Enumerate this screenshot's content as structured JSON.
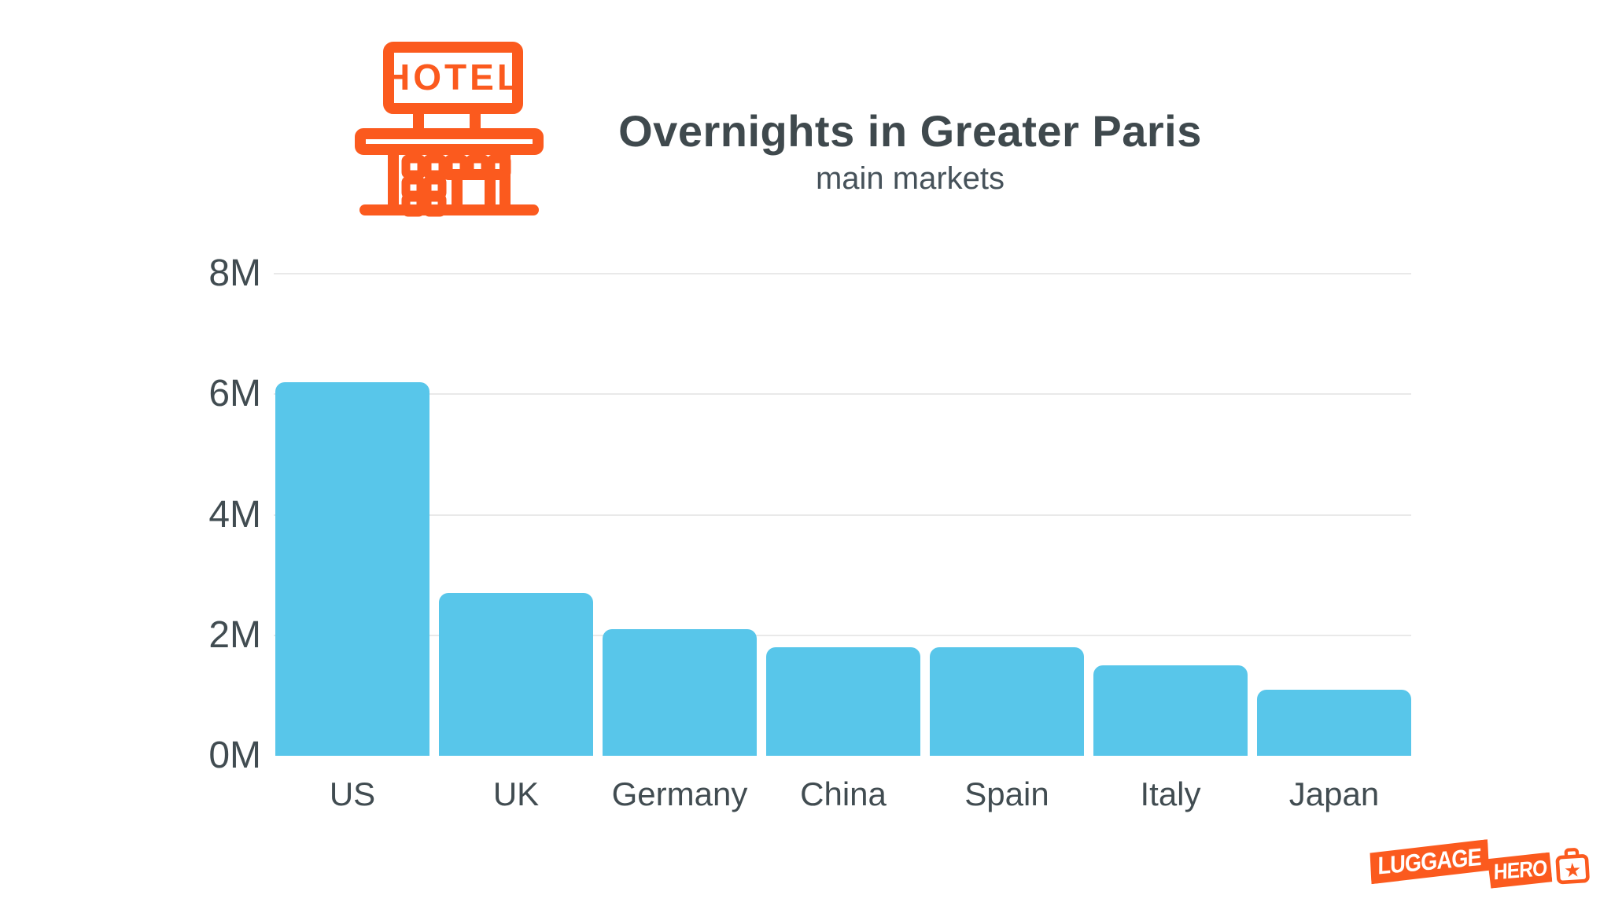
{
  "header": {
    "title": "Overnights in Greater Paris",
    "subtitle": "main markets",
    "icon": "hotel-icon",
    "hotel_sign_text": "HOTEL"
  },
  "chart_data": {
    "type": "bar",
    "title": "Overnights in Greater Paris",
    "subtitle": "main markets",
    "categories": [
      "US",
      "UK",
      "Germany",
      "China",
      "Spain",
      "Italy",
      "Japan"
    ],
    "values": [
      6.2,
      2.7,
      2.1,
      1.8,
      1.8,
      1.5,
      1.1
    ],
    "values_unit": "millions of overnights (M)",
    "ylim": [
      0,
      8
    ],
    "yticks": [
      {
        "value": 8,
        "label": "8M"
      },
      {
        "value": 6,
        "label": "6M"
      },
      {
        "value": 4,
        "label": "4M"
      },
      {
        "value": 2,
        "label": "2M"
      },
      {
        "value": 0,
        "label": "0M"
      }
    ],
    "grid": "horizontal",
    "legend": "none",
    "bar_color": "#58C6EA",
    "grid_color": "#E9E9E9",
    "axis_text_color": "#414C51",
    "title_color": "#3F494D"
  },
  "brand": {
    "name_first": "LUGGAGE",
    "name_second": "HERO",
    "icon": "suitcase-star-icon",
    "color": "#FB5A1E"
  }
}
